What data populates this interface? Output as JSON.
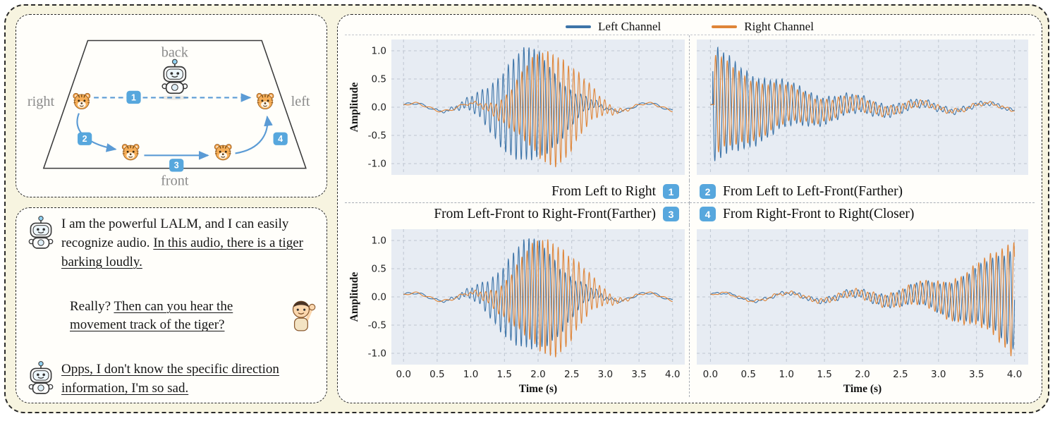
{
  "diagram": {
    "back": "back",
    "front": "front",
    "left_label": "left",
    "right_label": "right",
    "badges": [
      "1",
      "2",
      "3",
      "4"
    ],
    "arrow_color": "#5b9bd5",
    "badge_color": "#57a7dd",
    "edge_label_color": "#8b8b8b"
  },
  "dialogue": {
    "messages": [
      {
        "speaker": "robot",
        "align": "left",
        "segments": [
          {
            "text": "I am the powerful LALM, and I can easily recognize audio. ",
            "underline": false
          },
          {
            "text": "In this audio, there is a tiger barking loudly.",
            "underline": true
          }
        ]
      },
      {
        "speaker": "person",
        "align": "right",
        "segments": [
          {
            "text": "Really? ",
            "underline": false
          },
          {
            "text": "Then can you hear the movement track of the tiger?",
            "underline": true
          }
        ]
      },
      {
        "speaker": "robot",
        "align": "left",
        "segments": [
          {
            "text": "Opps, I don't know the specific direction information, I'm so sad.",
            "underline": true
          }
        ]
      }
    ]
  },
  "chart_data": {
    "type": "line",
    "description": "Four stereo waveform plots (amplitude vs time) of a moving tiger sound; left/right channel envelopes encode movement direction and distance.",
    "legend": [
      {
        "label": "Left Channel",
        "color": "#3d74a8"
      },
      {
        "label": "Right Channel",
        "color": "#df8538"
      }
    ],
    "xlabel": "Time (s)",
    "ylabel": "Amplitude",
    "x_ticks": [
      0.0,
      0.5,
      1.0,
      1.5,
      2.0,
      2.5,
      3.0,
      3.5,
      4.0
    ],
    "y_ticks": [
      1.0,
      0.5,
      0.0,
      -0.5,
      -1.0
    ],
    "xlim": [
      -0.18,
      4.18
    ],
    "ylim": [
      -1.2,
      1.2
    ],
    "grid": "dashed",
    "plot_bg": "#e7ecf3",
    "grid_color": "#bfc6d1",
    "carrier_hz": 13,
    "base_hz": 1.15,
    "base_amp": 0.07,
    "charts": [
      {
        "badge": "1",
        "badge_side": "right",
        "caption": "From Left to Right",
        "show_y": true,
        "show_x": false,
        "left_env": {
          "type": "gaussian",
          "center": 1.85,
          "sigma": 0.42,
          "peak": 1.0
        },
        "right_env": {
          "type": "gaussian",
          "center": 2.18,
          "sigma": 0.4,
          "peak": 1.0
        }
      },
      {
        "badge": "2",
        "badge_side": "left",
        "caption": "From Left to Left-Front(Farther)",
        "show_y": false,
        "show_x": false,
        "left_env": {
          "type": "decay",
          "start": 0.03,
          "tau": 1.0,
          "peak": 1.06
        },
        "right_env": {
          "type": "decay",
          "start": 0.05,
          "tau": 0.95,
          "peak": 0.9
        }
      },
      {
        "badge": "3",
        "badge_side": "right",
        "caption": "From Left-Front to Right-Front(Farther)",
        "show_y": true,
        "show_x": true,
        "left_env": {
          "type": "gaussian",
          "center": 1.9,
          "sigma": 0.42,
          "peak": 0.98
        },
        "right_env": {
          "type": "gaussian",
          "center": 2.15,
          "sigma": 0.42,
          "peak": 1.02
        }
      },
      {
        "badge": "4",
        "badge_side": "left",
        "caption": "From Right-Front to Right(Closer)",
        "show_y": false,
        "show_x": true,
        "left_env": {
          "type": "grow",
          "end": 4.0,
          "tau": 0.8,
          "peak": 0.9
        },
        "right_env": {
          "type": "grow",
          "end": 4.0,
          "tau": 0.75,
          "peak": 1.06
        }
      }
    ]
  }
}
